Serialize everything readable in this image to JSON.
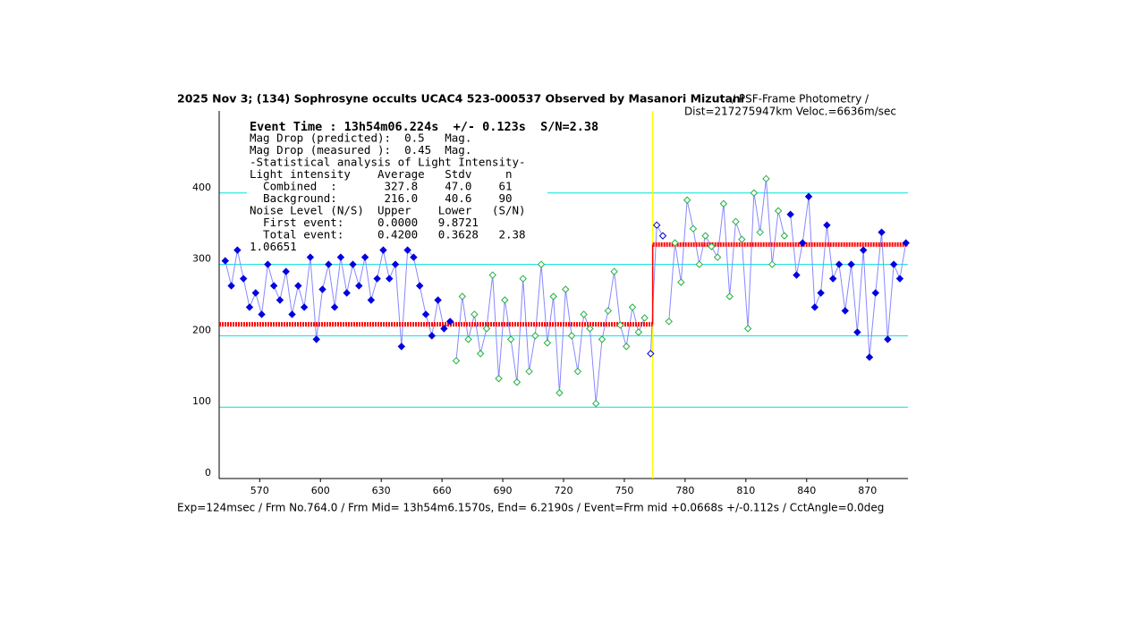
{
  "chart_data": {
    "type": "lightcurve",
    "title": "2025 Nov 3; (134) Sophrosyne occults UCAC4 523-000537 Observed by Masanori Mizutani",
    "subtitle": "/ PSF-Frame Photometry /",
    "info": "Dist=217275947km Veloc.=6636m/sec",
    "footer": "Exp=124msec / Frm No.764.0 / Frm Mid= 13h54m6.1570s,  End= 6.2190s / Event=Frm mid +0.0668s +/-0.112s / CctAngle=0.0deg",
    "event_line": "Event Time : 13h54m06.224s  +/- 0.123s  S/N=2.38",
    "stats": [
      "Mag Drop (predicted):  0.5   Mag.",
      "Mag Drop (measured ):  0.45  Mag.",
      "-Statistical analysis of Light Intensity-",
      "Light intensity    Average   Stdv     n",
      "  Combined  :       327.8    47.0    61",
      "  Background:       216.0    40.6    90",
      "Noise Level (N/S)  Upper    Lower   (S/N)",
      "  First event:     0.0000   9.8721",
      "  Total event:     0.4200   0.3628   2.38",
      "1.06651"
    ],
    "xlim": [
      550,
      890
    ],
    "ylim": [
      0,
      515
    ],
    "xticks": [
      570,
      600,
      630,
      660,
      690,
      720,
      750,
      780,
      810,
      840,
      870
    ],
    "yticks": [
      0,
      100,
      200,
      300,
      400
    ],
    "grid": true,
    "grid_color": "#00e0e0",
    "line_color": "#8888ff",
    "event_x": 764,
    "event_color": "#ffff00",
    "level_before": 216.0,
    "level_after": 327.8,
    "level_color": "#ff0000",
    "series": [
      {
        "color": "#0000e0",
        "filled": true,
        "x": [
          553,
          556,
          559,
          562,
          565,
          568,
          571,
          574,
          577,
          580,
          583,
          586,
          589,
          592,
          595,
          598,
          601,
          604,
          607,
          610,
          613,
          616,
          619,
          622,
          625,
          628,
          631,
          634,
          637,
          640,
          643,
          646,
          649,
          652,
          655,
          658,
          661,
          664
        ],
        "values": [
          305,
          270,
          320,
          280,
          240,
          260,
          230,
          300,
          270,
          250,
          290,
          230,
          270,
          240,
          310,
          195,
          265,
          300,
          240,
          310,
          260,
          300,
          270,
          310,
          250,
          280,
          320,
          280,
          300,
          185,
          320,
          310,
          270,
          230,
          200,
          250,
          210,
          220
        ]
      },
      {
        "color": "#20b040",
        "filled": false,
        "x": [
          667,
          670,
          673,
          676,
          679,
          682,
          685,
          688,
          691,
          694,
          697,
          700,
          703,
          706,
          709,
          712,
          715,
          718,
          721,
          724,
          727,
          730,
          733,
          736,
          739,
          742,
          745,
          748,
          751,
          754,
          757,
          760
        ],
        "values": [
          165,
          255,
          195,
          230,
          175,
          210,
          285,
          140,
          250,
          195,
          135,
          280,
          150,
          200,
          300,
          190,
          255,
          120,
          265,
          200,
          150,
          230,
          210,
          105,
          195,
          235,
          290,
          215,
          185,
          240,
          205,
          225
        ]
      },
      {
        "color": "#0000c0",
        "filled": false,
        "x": [
          763,
          766,
          769
        ],
        "values": [
          175,
          355,
          340
        ]
      },
      {
        "color": "#20b040",
        "filled": false,
        "x": [
          772,
          775,
          778,
          781,
          784,
          787,
          790,
          793,
          796,
          799,
          802,
          805,
          808,
          811,
          814,
          817,
          820,
          823,
          826,
          829
        ],
        "values": [
          220,
          330,
          275,
          390,
          350,
          300,
          340,
          325,
          310,
          385,
          255,
          360,
          335,
          210,
          400,
          345,
          420,
          300,
          375,
          340
        ]
      },
      {
        "color": "#0000e0",
        "filled": true,
        "x": [
          832,
          835,
          838,
          841,
          844,
          847,
          850,
          853,
          856,
          859,
          862,
          865,
          868,
          871,
          874,
          877,
          880,
          883,
          886,
          889
        ],
        "values": [
          370,
          285,
          330,
          395,
          240,
          260,
          355,
          280,
          300,
          235,
          300,
          205,
          320,
          170,
          260,
          345,
          195,
          300,
          280,
          330
        ]
      }
    ]
  }
}
